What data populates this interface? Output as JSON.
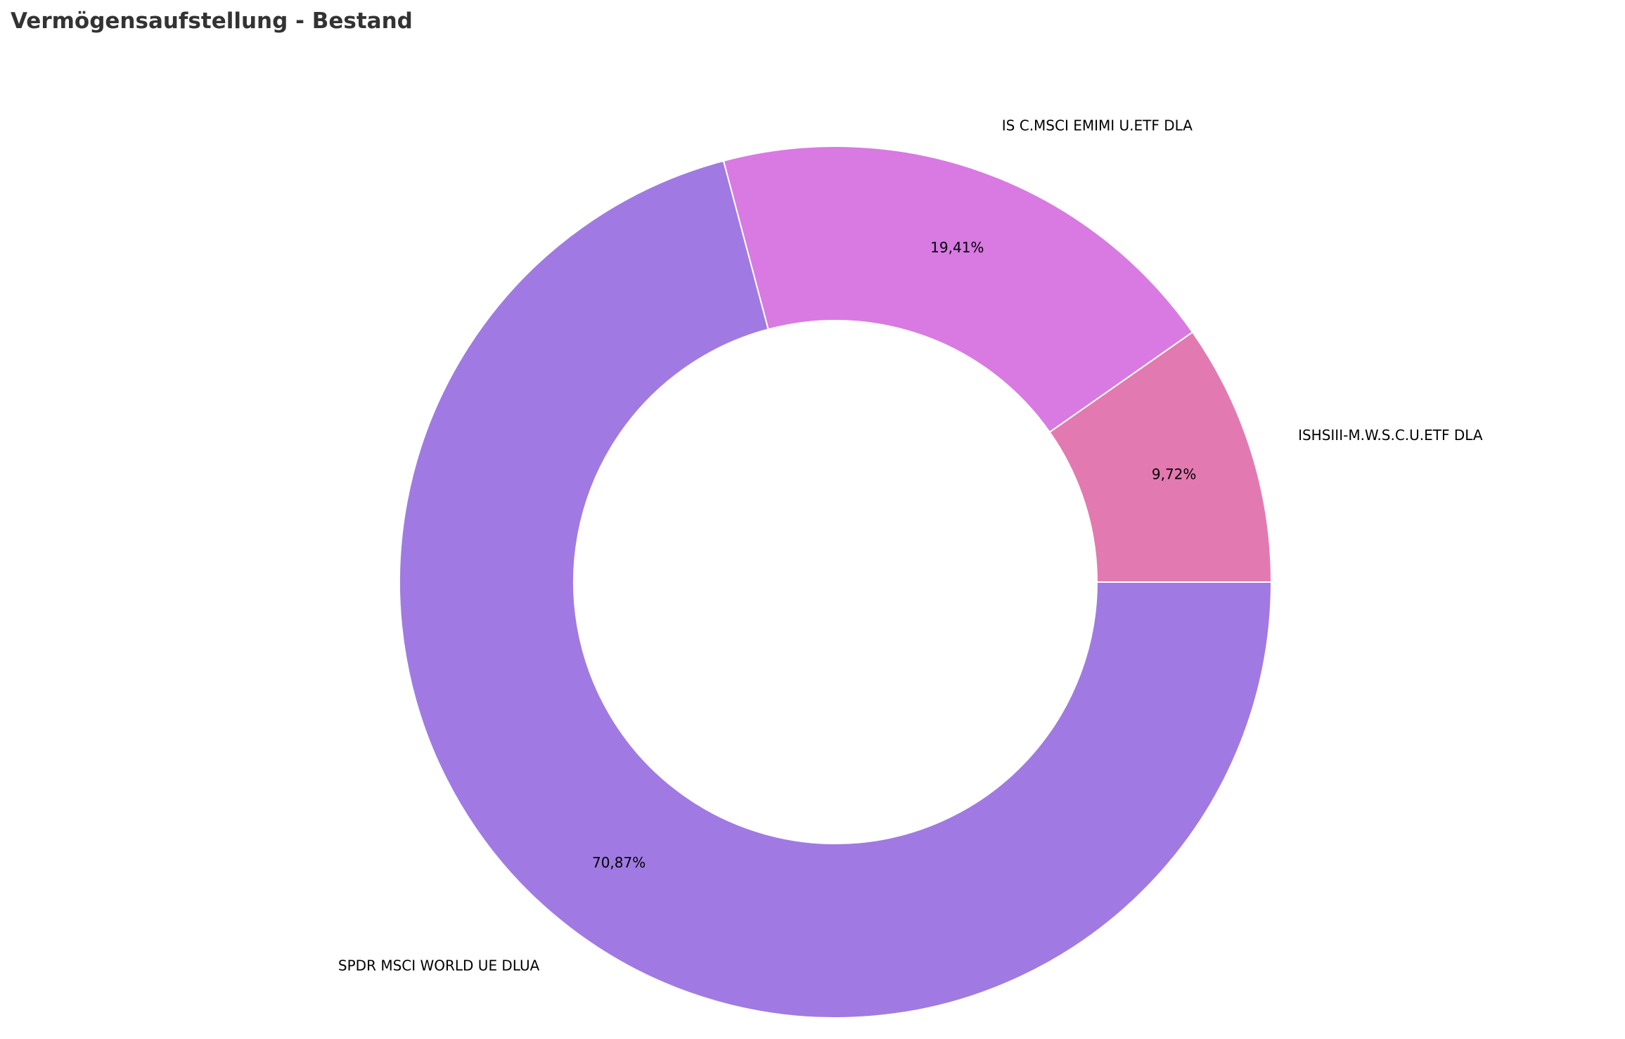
{
  "chart_data": {
    "type": "pie",
    "variant": "donut",
    "title": "Vermögensaufstellung - Bestand",
    "series": [
      {
        "name": "SPDR MSCI WORLD UE DLUA",
        "value": 70.87,
        "label": "70,87%",
        "color": "#a07ae2"
      },
      {
        "name": "IS C.MSCI EMIMI U.ETF DLA",
        "value": 19.41,
        "label": "19,41%",
        "color": "#d87ae2"
      },
      {
        "name": "ISHSIII-M.W.S.C.U.ETF DLA",
        "value": 9.72,
        "label": "9,72%",
        "color": "#e27ab1"
      }
    ],
    "grid": false,
    "legend": "none"
  }
}
